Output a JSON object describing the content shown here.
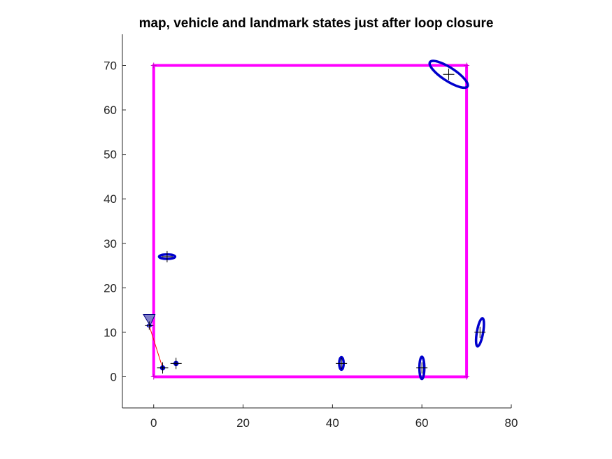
{
  "chart_data": {
    "type": "scatter",
    "title": "map, vehicle and landmark states just after loop closure",
    "xlabel": "",
    "ylabel": "",
    "xlim": [
      -7,
      80
    ],
    "ylim": [
      -7,
      77
    ],
    "xticks": [
      0,
      20,
      40,
      60,
      80
    ],
    "yticks": [
      0,
      10,
      20,
      30,
      40,
      50,
      60,
      70
    ],
    "grid": false,
    "legend": "none",
    "equal_aspect": true,
    "path": {
      "color": "#ff00ff",
      "points": [
        [
          0,
          0
        ],
        [
          70,
          0
        ],
        [
          70,
          70
        ],
        [
          0,
          70
        ],
        [
          0,
          0
        ]
      ]
    },
    "landmarks": {
      "color": "#0000cc",
      "items": [
        {
          "x": 2,
          "y": 2,
          "rx": 0.25,
          "ry": 0.25,
          "angle": 0
        },
        {
          "x": 5,
          "y": 3,
          "rx": 0.25,
          "ry": 0.25,
          "angle": 0
        },
        {
          "x": 3,
          "y": 27,
          "rx": 1.8,
          "ry": 0.5,
          "angle": 0
        },
        {
          "x": 42,
          "y": 3,
          "rx": 0.5,
          "ry": 1.4,
          "angle": 0
        },
        {
          "x": 60,
          "y": 2,
          "rx": 0.55,
          "ry": 2.5,
          "angle": 0
        },
        {
          "x": 73,
          "y": 10,
          "rx": 0.7,
          "ry": 3.2,
          "angle": -10
        },
        {
          "x": 66,
          "y": 68,
          "rx": 5,
          "ry": 1.5,
          "angle": -33
        }
      ]
    },
    "vehicle": {
      "x": -1,
      "y": 11.5,
      "color": "#8080c8",
      "edge": "#000080",
      "triangle": [
        [
          -2.3,
          14
        ],
        [
          0.3,
          14
        ],
        [
          -0.8,
          11.5
        ]
      ]
    },
    "observation": {
      "color": "#ff0000",
      "from": [
        -1,
        11.5
      ],
      "to": [
        2,
        2
      ]
    }
  }
}
